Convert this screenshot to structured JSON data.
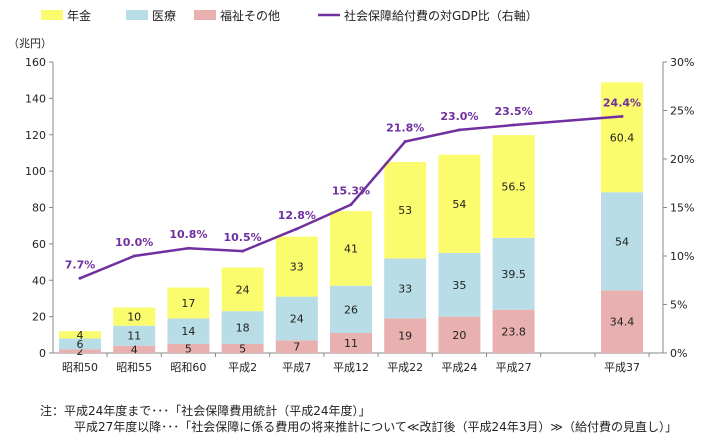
{
  "chart_data": {
    "type": "bar",
    "stacked": true,
    "left_axis_unit": "（兆円）",
    "left_ylim": [
      0,
      160
    ],
    "left_ticks": [
      "0",
      "20",
      "40",
      "60",
      "80",
      "100",
      "120",
      "140",
      "160"
    ],
    "right_ylim": [
      0,
      30
    ],
    "right_ticks": [
      "0%",
      "5%",
      "10%",
      "15%",
      "20%",
      "25%",
      "30%"
    ],
    "categories": [
      "昭和50",
      "昭和55",
      "昭和60",
      "平成2",
      "平成7",
      "平成12",
      "平成22",
      "平成24",
      "平成27",
      "平成37"
    ],
    "category_slots": [
      0,
      1,
      2,
      3,
      4,
      5,
      6,
      7,
      8,
      10
    ],
    "series": [
      {
        "name": "福祉その他",
        "color": "#e8b0ae",
        "values": [
          2,
          4,
          5,
          5,
          7,
          11,
          19,
          20,
          23.8,
          34.4
        ],
        "labels": [
          "2",
          "4",
          "5",
          "5",
          "7",
          "11",
          "19",
          "20",
          "23.8",
          "34.4"
        ]
      },
      {
        "name": "医療",
        "color": "#b8dde6",
        "values": [
          6,
          11,
          14,
          18,
          24,
          26,
          33,
          35,
          39.5,
          54
        ],
        "labels": [
          "6",
          "11",
          "14",
          "18",
          "24",
          "26",
          "33",
          "35",
          "39.5",
          "54"
        ]
      },
      {
        "name": "年金",
        "color": "#fbfb6e",
        "values": [
          4,
          10,
          17,
          24,
          33,
          41,
          53,
          54,
          56.5,
          60.4
        ],
        "labels": [
          "4",
          "10",
          "17",
          "24",
          "33",
          "41",
          "53",
          "54",
          "56.5",
          "60.4"
        ]
      }
    ],
    "line": {
      "name": "社会保障給付費の対GDP比（右軸）",
      "color": "#7030a0",
      "values": [
        7.7,
        10.0,
        10.8,
        10.5,
        12.8,
        15.3,
        21.8,
        23.0,
        23.5,
        24.4
      ],
      "labels": [
        "7.7%",
        "10.0%",
        "10.8%",
        "10.5%",
        "12.8%",
        "15.3%",
        "21.8%",
        "23.0%",
        "23.5%",
        "24.4%"
      ]
    },
    "legend": [
      "年金",
      "医療",
      "福祉その他",
      "社会保障給付費の対GDP比（右軸）"
    ],
    "legend_position": "top-left"
  },
  "notes": [
    "注：平成24年度まで･･･「社会保障費用統計（平成24年度）」",
    "平成27年度以降･･･「社会保障に係る費用の将来推計について≪改訂後（平成24年3月）≫（給付費の見直し）」"
  ]
}
